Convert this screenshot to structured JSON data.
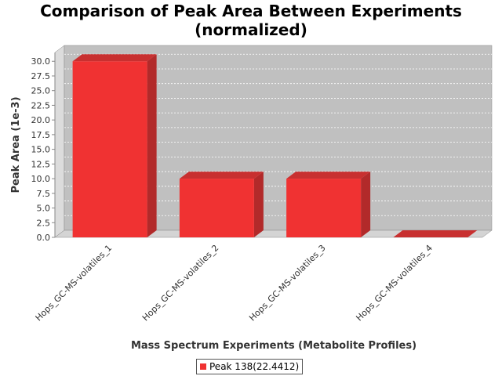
{
  "chart_data": {
    "type": "bar",
    "title_lines": [
      "Comparison of Peak Area Between Experiments",
      "(normalized)"
    ],
    "xlabel": "Mass Spectrum Experiments (Metabolite Profiles)",
    "ylabel": "Peak Area (1e-3)",
    "categories": [
      "Hops_GC-MS-volatiles_1",
      "Hops_GC-MS-volatiles_2",
      "Hops_GC-MS-volatiles_3",
      "Hops_GC-MS-volatiles_4"
    ],
    "series": [
      {
        "name": "Peak 138(22.4412)",
        "values": [
          30.0,
          10.0,
          10.0,
          0.0
        ]
      }
    ],
    "yticks": [
      "0.0",
      "2.5",
      "5.0",
      "7.5",
      "10.0",
      "12.5",
      "15.0",
      "17.5",
      "20.0",
      "22.5",
      "25.0",
      "27.5",
      "30.0"
    ],
    "ylim": [
      0,
      31.5
    ],
    "grid": true,
    "legend_position": "bottom",
    "colors": {
      "bar_front": "#f03232",
      "bar_side": "#b22a2a",
      "bar_top": "#c83030",
      "plot_back": "#c0c0c0",
      "plot_wall": "#dcdcdc",
      "plot_floor": "#d4d4d4"
    }
  }
}
